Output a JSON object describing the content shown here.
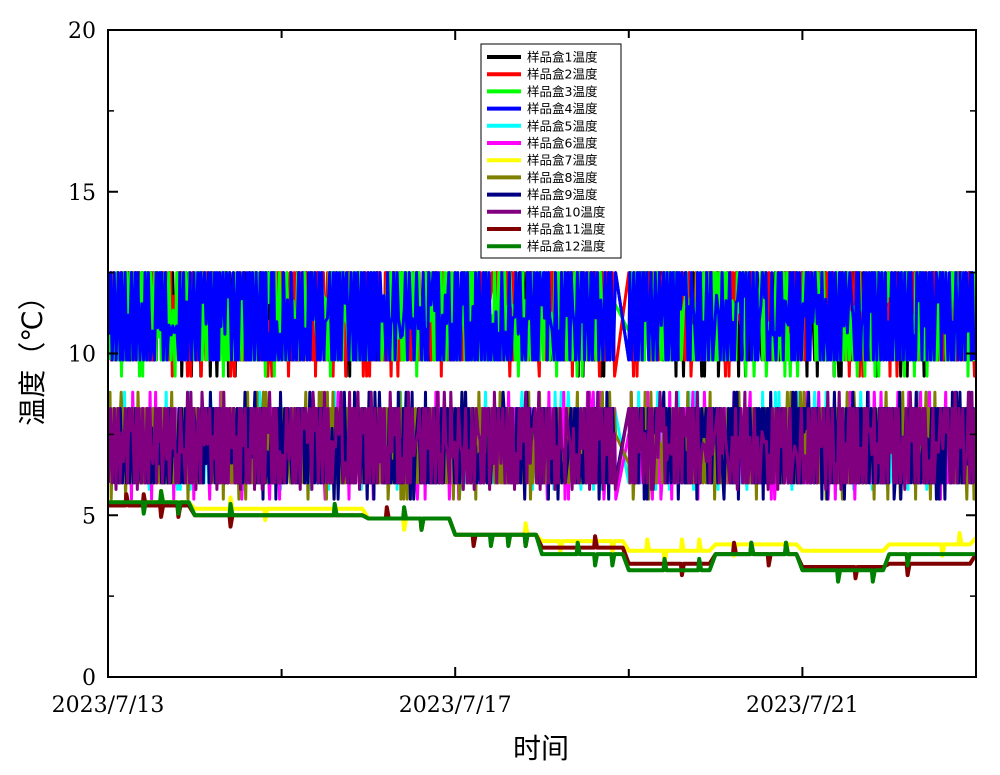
{
  "chart_data": {
    "type": "line",
    "xlabel": "时间",
    "ylabel": "温度（℃）",
    "ylim": [
      0,
      20
    ],
    "yticks": [
      "0",
      "5",
      "10",
      "15",
      "20"
    ],
    "xlim": [
      "2023-07-13",
      "2023-07-23"
    ],
    "xticks": [
      {
        "date": "2023-07-13",
        "label": "2023/7/13"
      },
      {
        "date": "2023-07-17",
        "label": "2023/7/17"
      },
      {
        "date": "2023-07-21",
        "label": "2023/7/21"
      }
    ],
    "grid": false,
    "legend_position": "top-center",
    "data_gap": [
      "2023-07-18",
      "2023-07-18"
    ],
    "series": [
      {
        "name": "样品盒1温度",
        "color": "#000000",
        "band": [
          9.8,
          12.5
        ],
        "spikes": [
          9.3,
          12.5
        ]
      },
      {
        "name": "样品盒2温度",
        "color": "#ff0000",
        "band": [
          9.8,
          12.5
        ],
        "spikes": [
          9.3,
          12.5
        ]
      },
      {
        "name": "样品盒3温度",
        "color": "#00ff00",
        "band": [
          9.8,
          12.5
        ],
        "spikes": [
          9.3,
          12.5
        ]
      },
      {
        "name": "样品盒4温度",
        "color": "#0000ff",
        "band": [
          9.8,
          12.5
        ],
        "spikes": [
          9.8,
          12.5
        ]
      },
      {
        "name": "样品盒5温度",
        "color": "#00ffff",
        "band": [
          6.0,
          8.3
        ],
        "spikes": [
          5.8,
          8.8
        ]
      },
      {
        "name": "样品盒6温度",
        "color": "#ff00ff",
        "band": [
          6.0,
          8.3
        ],
        "spikes": [
          5.5,
          8.8
        ]
      },
      {
        "name": "样品盒7温度",
        "color": "#ffff00",
        "steps": [
          [
            "2023-07-13",
            5.4
          ],
          [
            "2023-07-14",
            5.2
          ],
          [
            "2023-07-16",
            4.9
          ],
          [
            "2023-07-17",
            4.4
          ],
          [
            "2023-07-18",
            4.2
          ],
          [
            "2023-07-19",
            3.9
          ],
          [
            "2023-07-20",
            4.1
          ],
          [
            "2023-07-21",
            3.9
          ],
          [
            "2023-07-22",
            4.1
          ],
          [
            "2023-07-23",
            4.3
          ]
        ]
      },
      {
        "name": "样品盒8温度",
        "color": "#808000",
        "band": [
          6.0,
          8.3
        ],
        "spikes": [
          5.5,
          8.8
        ]
      },
      {
        "name": "样品盒9温度",
        "color": "#000080",
        "band": [
          6.0,
          8.3
        ],
        "spikes": [
          5.5,
          8.8
        ]
      },
      {
        "name": "样品盒10温度",
        "color": "#800080",
        "band": [
          6.0,
          8.3
        ],
        "spikes": [
          5.8,
          8.8
        ]
      },
      {
        "name": "样品盒11温度",
        "color": "#800000",
        "steps": [
          [
            "2023-07-13",
            5.3
          ],
          [
            "2023-07-14",
            5.0
          ],
          [
            "2023-07-16",
            4.9
          ],
          [
            "2023-07-17",
            4.4
          ],
          [
            "2023-07-18",
            4.0
          ],
          [
            "2023-07-19",
            3.5
          ],
          [
            "2023-07-20",
            3.8
          ],
          [
            "2023-07-21",
            3.4
          ],
          [
            "2023-07-22",
            3.5
          ],
          [
            "2023-07-23",
            3.8
          ]
        ]
      },
      {
        "name": "样品盒12温度",
        "color": "#008000",
        "steps": [
          [
            "2023-07-13",
            5.4
          ],
          [
            "2023-07-14",
            5.0
          ],
          [
            "2023-07-16",
            4.9
          ],
          [
            "2023-07-17",
            4.4
          ],
          [
            "2023-07-18",
            3.8
          ],
          [
            "2023-07-19",
            3.3
          ],
          [
            "2023-07-20",
            3.8
          ],
          [
            "2023-07-21",
            3.3
          ],
          [
            "2023-07-22",
            3.8
          ],
          [
            "2023-07-23",
            3.8
          ]
        ]
      }
    ]
  }
}
